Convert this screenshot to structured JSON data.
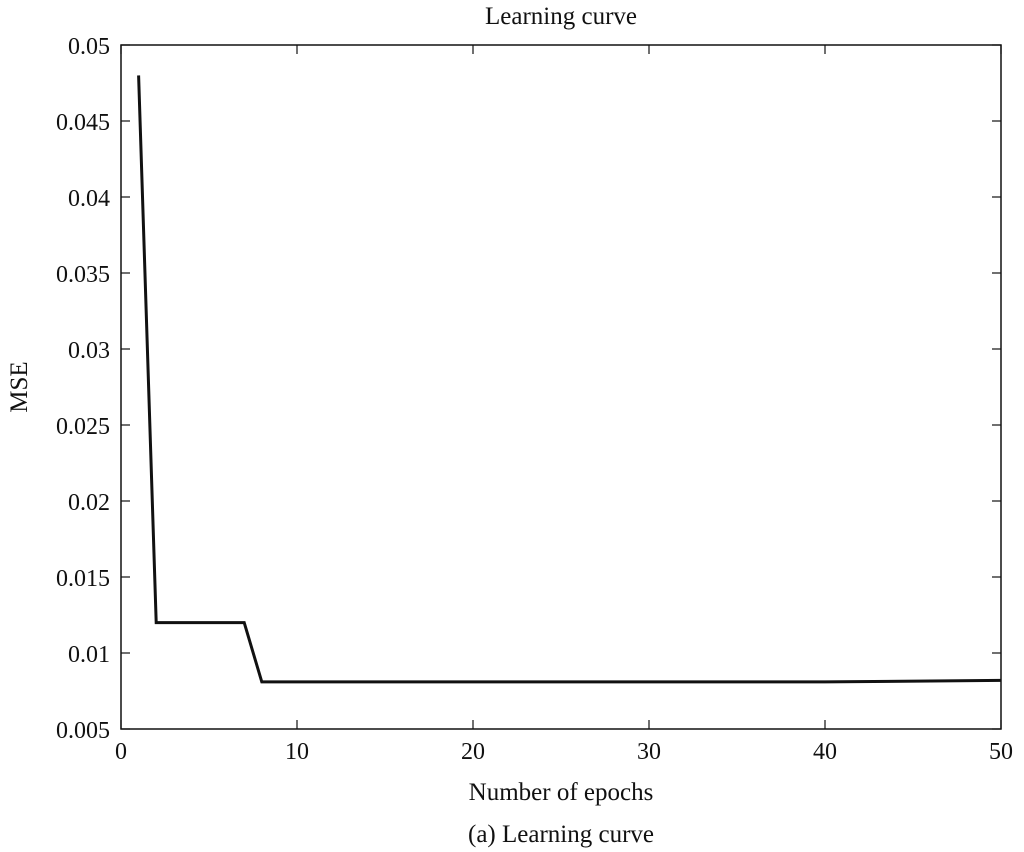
{
  "chart_data": {
    "type": "line",
    "title": "Learning curve",
    "xlabel": "Number of epochs",
    "ylabel": "MSE",
    "caption": "(a) Learning curve",
    "xlim": [
      0,
      50
    ],
    "ylim": [
      0.005,
      0.05
    ],
    "xticks": [
      0,
      10,
      20,
      30,
      40,
      50
    ],
    "xtick_labels": [
      "0",
      "10",
      "20",
      "30",
      "40",
      "50"
    ],
    "yticks": [
      0.005,
      0.01,
      0.015,
      0.02,
      0.025,
      0.03,
      0.035,
      0.04,
      0.045,
      0.05
    ],
    "ytick_labels": [
      "0.005",
      "0.01",
      "0.015",
      "0.02",
      "0.025",
      "0.03",
      "0.035",
      "0.04",
      "0.045",
      "0.05"
    ],
    "grid": false,
    "series": [
      {
        "color": "#111111",
        "x": [
          1,
          2,
          7,
          8,
          10,
          20,
          30,
          40,
          50
        ],
        "y": [
          0.048,
          0.012,
          0.012,
          0.0081,
          0.0081,
          0.0081,
          0.0081,
          0.0081,
          0.0082
        ]
      }
    ]
  }
}
